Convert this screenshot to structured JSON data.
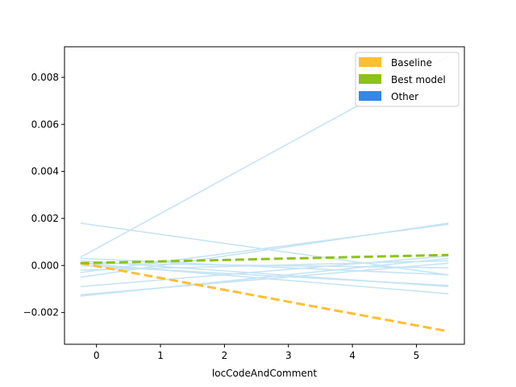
{
  "chart_data": {
    "type": "line",
    "title": "",
    "xlabel": "locCodeAndComment",
    "ylabel": "",
    "xlim": [
      -0.5,
      5.75
    ],
    "ylim": [
      -0.00335,
      0.0093
    ],
    "x_ticks": [
      0,
      1,
      2,
      3,
      4,
      5
    ],
    "x_tick_labels": [
      "0",
      "1",
      "2",
      "3",
      "4",
      "5"
    ],
    "y_ticks": [
      -0.002,
      0.0,
      0.002,
      0.004,
      0.006,
      0.008
    ],
    "y_tick_labels": [
      "−0.002",
      "0.000",
      "0.002",
      "0.004",
      "0.006",
      "0.008"
    ],
    "grid": false,
    "legend": {
      "placement": "top-right",
      "entries": [
        {
          "label": "Baseline",
          "color": "#ffbf33"
        },
        {
          "label": "Best model",
          "color": "#8cc21a"
        },
        {
          "label": "Other",
          "color": "#3388e8"
        }
      ]
    },
    "series": [
      {
        "group": "Other",
        "color": "#c6e4f5",
        "dash": false,
        "x": [
          -0.25,
          5.5
        ],
        "y": [
          0.00035,
          0.0089
        ]
      },
      {
        "group": "Other",
        "color": "#c6e4f5",
        "dash": false,
        "x": [
          -0.25,
          5.5
        ],
        "y": [
          0.0018,
          -0.0004
        ]
      },
      {
        "group": "Other",
        "color": "#c6e4f5",
        "dash": false,
        "x": [
          -0.25,
          5.5
        ],
        "y": [
          -0.0005,
          0.0018
        ]
      },
      {
        "group": "Other",
        "color": "#c6e4f5",
        "dash": false,
        "x": [
          -0.25,
          5.5
        ],
        "y": [
          -0.0003,
          0.00175
        ]
      },
      {
        "group": "Other",
        "color": "#c6e4f5",
        "dash": false,
        "x": [
          -0.25,
          5.5
        ],
        "y": [
          -0.0013,
          0.0003
        ]
      },
      {
        "group": "Other",
        "color": "#c6e4f5",
        "dash": false,
        "x": [
          -0.25,
          5.5
        ],
        "y": [
          -0.00125,
          0.0001
        ]
      },
      {
        "group": "Other",
        "color": "#c6e4f5",
        "dash": false,
        "x": [
          -0.25,
          5.5
        ],
        "y": [
          -0.0009,
          0.0004
        ]
      },
      {
        "group": "Other",
        "color": "#c6e4f5",
        "dash": false,
        "x": [
          -0.25,
          5.5
        ],
        "y": [
          0.0002,
          -0.0009
        ]
      },
      {
        "group": "Other",
        "color": "#c6e4f5",
        "dash": false,
        "x": [
          -0.25,
          5.5
        ],
        "y": [
          0.0,
          -0.00085
        ]
      },
      {
        "group": "Other",
        "color": "#c6e4f5",
        "dash": false,
        "x": [
          -0.25,
          5.5
        ],
        "y": [
          0.0001,
          -0.0012
        ]
      },
      {
        "group": "Other",
        "color": "#c6e4f5",
        "dash": false,
        "x": [
          -0.25,
          5.5
        ],
        "y": [
          0.0001,
          -0.0001
        ]
      },
      {
        "group": "Other",
        "color": "#c6e4f5",
        "dash": false,
        "x": [
          -0.25,
          5.5
        ],
        "y": [
          -0.0002,
          0.0002
        ]
      },
      {
        "group": "Other",
        "color": "#c6e4f5",
        "dash": false,
        "x": [
          -0.25,
          5.5
        ],
        "y": [
          0.0003,
          -0.0004
        ]
      },
      {
        "group": "Baseline",
        "color": "#ffbf33",
        "dash": true,
        "x": [
          -0.25,
          5.5
        ],
        "y": [
          0.0001,
          -0.0028
        ]
      },
      {
        "group": "Best model",
        "color": "#8cc21a",
        "dash": true,
        "x": [
          -0.25,
          5.5
        ],
        "y": [
          0.0001,
          0.00045
        ]
      }
    ]
  }
}
